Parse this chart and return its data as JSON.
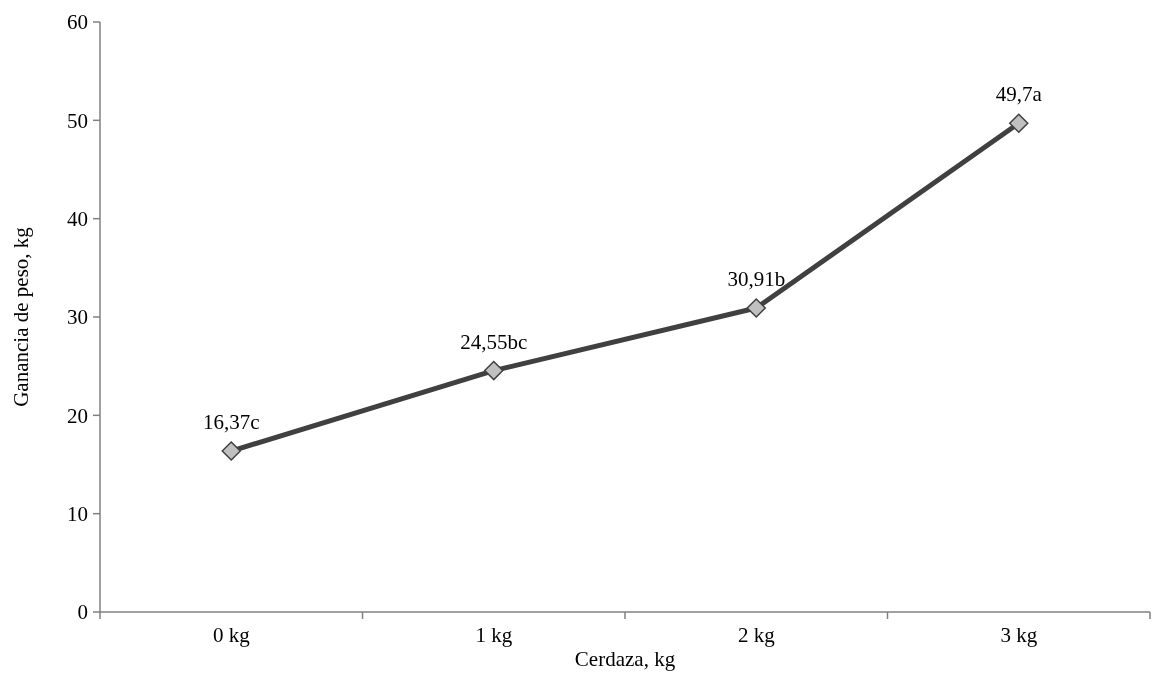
{
  "chart_data": {
    "type": "line",
    "xlabel": "Cerdaza, kg",
    "ylabel": "Ganancia de peso, kg",
    "categories": [
      "0 kg",
      "1 kg",
      "2 kg",
      "3 kg"
    ],
    "series": [
      {
        "color": "#404040",
        "values": [
          16.37,
          24.55,
          30.91,
          49.7
        ],
        "value_labels": [
          "16,37c",
          "24,55bc",
          "30,91b",
          "49,7a"
        ]
      }
    ],
    "ylim": [
      0,
      60
    ],
    "yticks": [
      0,
      10,
      20,
      30,
      40,
      50,
      60
    ],
    "marker": "diamond",
    "line_style": "solid",
    "grid": false
  }
}
